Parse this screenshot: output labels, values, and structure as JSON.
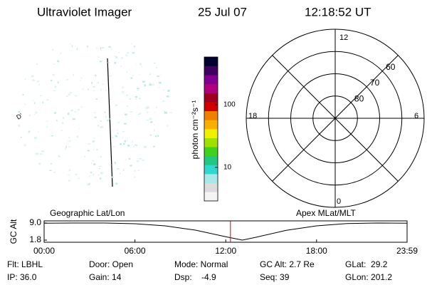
{
  "header": {
    "title": "Ultraviolet Imager",
    "date": "25 Jul 07",
    "time": "12:18:52 UT"
  },
  "left_panel": {
    "label": "Geographic Lat/Lon"
  },
  "colorbar": {
    "label": "photon cm⁻²s⁻¹",
    "log": true,
    "range": [
      2.9,
      577
    ],
    "ticks": [
      10,
      100
    ],
    "colors": [
      "#f4f4f4",
      "#dcdcdc",
      "#a8e8e8",
      "#30d8d0",
      "#20c880",
      "#40d020",
      "#a0e000",
      "#f0f000",
      "#f8b000",
      "#f08000",
      "#d00000",
      "#a00020",
      "#b00080",
      "#800090",
      "#400060",
      "#000030"
    ]
  },
  "polar": {
    "label": "Apex MLat/MLT",
    "latlim": [
      90,
      50
    ],
    "lat_rings": [
      80,
      70,
      60
    ],
    "mlt_labels": {
      "top": "12",
      "left": "18",
      "right": "6",
      "bottom": "0"
    }
  },
  "altitude_plot": {
    "y_label": "GC Alt",
    "ylim": [
      1.8,
      9.0
    ],
    "yticks": [
      {
        "value": 1.8,
        "label": "1.8"
      },
      {
        "value": 9.0,
        "label": "9.0"
      }
    ],
    "xlim": [
      0,
      23.98
    ],
    "xticks": [
      {
        "value": 0,
        "label": "00:00"
      },
      {
        "value": 6,
        "label": "06:00"
      },
      {
        "value": 12,
        "label": "12:00"
      },
      {
        "value": 18,
        "label": "18:00"
      },
      {
        "value": 23.98,
        "label": "23:59"
      }
    ],
    "x": [
      0,
      2,
      4,
      6,
      8,
      10,
      12,
      13.1,
      14,
      16,
      18,
      20,
      22,
      23.98
    ],
    "values": [
      8.9,
      9.0,
      9.0,
      8.7,
      7.8,
      6.0,
      3.2,
      1.8,
      3.0,
      5.9,
      7.8,
      8.8,
      9.0,
      8.9
    ],
    "marker": 12.31,
    "marker_color": "#e00000"
  },
  "footer": {
    "rows": [
      [
        "Flt: LBHL",
        "Door: Open",
        "Mode: Normal",
        "GC Alt: 2.7 Re",
        "GLat:  29.2"
      ],
      [
        "IP: 36.0",
        "Gain: 14",
        "Dsp:    -4.9",
        "Seq: 39",
        "GLon: 201.2"
      ]
    ]
  }
}
